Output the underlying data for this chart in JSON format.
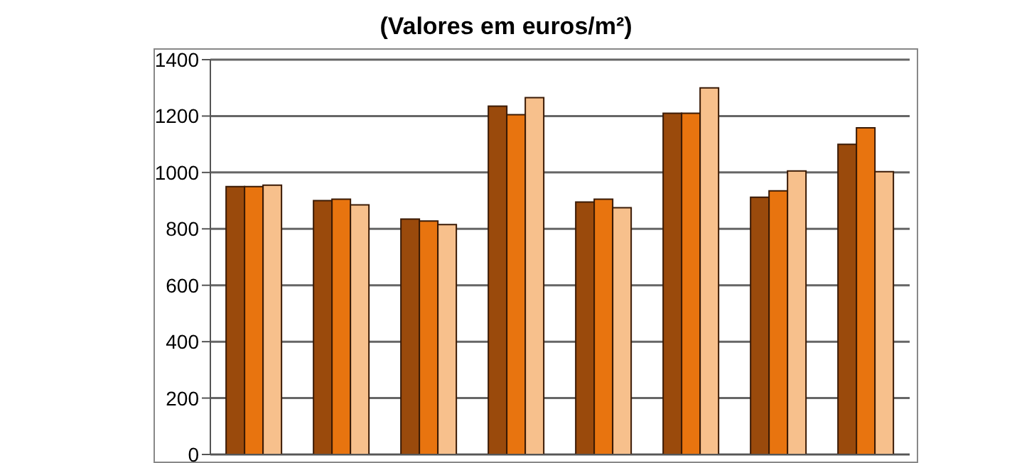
{
  "chart_data": {
    "type": "bar",
    "title": "(Valores em euros/m²)",
    "categories": [
      null,
      null,
      null,
      null,
      null,
      null,
      null,
      null
    ],
    "series": [
      {
        "color": "#9a4a0c",
        "values": [
          950,
          900,
          835,
          1235,
          895,
          1210,
          912,
          1100
        ]
      },
      {
        "color": "#e8740f",
        "values": [
          950,
          905,
          828,
          1205,
          905,
          1210,
          935,
          1158
        ]
      },
      {
        "color": "#f7c08c",
        "values": [
          955,
          885,
          815,
          1265,
          875,
          1300,
          1005,
          1003
        ]
      }
    ],
    "ylim": [
      0,
      1400
    ],
    "yticks": [
      0,
      200,
      400,
      600,
      800,
      1000,
      1200,
      1400
    ],
    "grid": "y",
    "tick_labels": "y"
  }
}
